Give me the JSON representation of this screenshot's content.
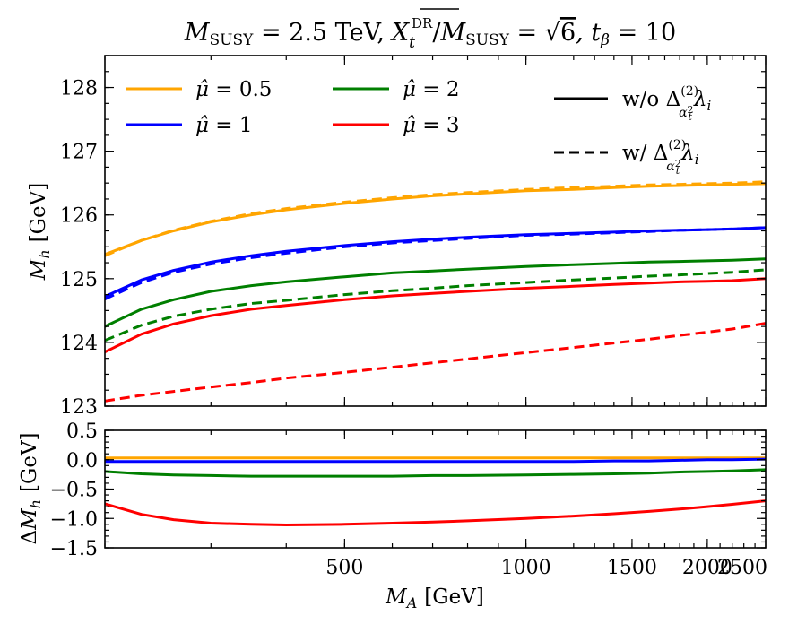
{
  "chart_data": {
    "type": "line",
    "title": {
      "m_susy_symbol": "M",
      "m_susy_sub": "SUSY",
      "m_susy_value": " = 2.5 TeV,",
      "xt_symbol": "X",
      "xt_sub": "t",
      "xt_sup": "DR",
      "over": "/",
      "m2_symbol": "M",
      "m2_sub": "SUSY",
      "eq": " = ",
      "sqrt_arg": "6",
      "tb_part": ", t",
      "tb_sub": "β",
      "tb_value": " = 10"
    },
    "xlabel": {
      "symbol": "M",
      "sub": "A",
      "unit": "[GeV]"
    },
    "x_scale": "log",
    "xlim": [
      200,
      2500
    ],
    "x_ticks": [
      500,
      1000,
      1500,
      2000,
      2500
    ],
    "x_tick_labels": [
      "500",
      "1000",
      "1500",
      "2000",
      "2500"
    ],
    "x": [
      200,
      230,
      260,
      300,
      350,
      400,
      500,
      600,
      700,
      800,
      1000,
      1200,
      1400,
      1600,
      1800,
      2000,
      2200,
      2500
    ],
    "top": {
      "ylabel": {
        "symbol": "M",
        "sub": "h",
        "unit": "[GeV]"
      },
      "ylim": [
        123,
        128.5
      ],
      "y_ticks": [
        123,
        124,
        125,
        126,
        127,
        128
      ],
      "y_tick_labels": [
        "123",
        "124",
        "125",
        "126",
        "127",
        "128"
      ],
      "series": [
        {
          "name": "μ̂ = 0.5",
          "color": "#FFA500",
          "style": "solid",
          "values": [
            125.38,
            125.6,
            125.75,
            125.89,
            126.0,
            126.08,
            126.18,
            126.25,
            126.3,
            126.33,
            126.38,
            126.4,
            126.43,
            126.45,
            126.46,
            126.47,
            126.48,
            126.49
          ]
        },
        {
          "name": "μ̂ = 0.5",
          "color": "#FFA500",
          "style": "dashed",
          "values": [
            125.36,
            125.6,
            125.76,
            125.9,
            126.02,
            126.1,
            126.2,
            126.27,
            126.32,
            126.35,
            126.4,
            126.43,
            126.45,
            126.47,
            126.48,
            126.49,
            126.5,
            126.52
          ]
        },
        {
          "name": "μ̂ = 1",
          "color": "#0000FF",
          "style": "solid",
          "values": [
            124.72,
            124.98,
            125.13,
            125.26,
            125.36,
            125.43,
            125.52,
            125.58,
            125.62,
            125.65,
            125.69,
            125.71,
            125.73,
            125.75,
            125.76,
            125.77,
            125.78,
            125.8
          ]
        },
        {
          "name": "μ̂ = 1",
          "color": "#0000FF",
          "style": "dashed",
          "values": [
            124.68,
            124.94,
            125.1,
            125.23,
            125.33,
            125.4,
            125.5,
            125.56,
            125.6,
            125.63,
            125.68,
            125.7,
            125.72,
            125.74,
            125.76,
            125.77,
            125.78,
            125.8
          ]
        },
        {
          "name": "μ̂ = 2",
          "color": "#007F00",
          "style": "solid",
          "values": [
            124.25,
            124.52,
            124.67,
            124.8,
            124.89,
            124.95,
            125.03,
            125.09,
            125.12,
            125.15,
            125.19,
            125.22,
            125.24,
            125.26,
            125.27,
            125.28,
            125.29,
            125.31
          ]
        },
        {
          "name": "μ̂ = 2",
          "color": "#007F00",
          "style": "dashed",
          "values": [
            124.03,
            124.27,
            124.41,
            124.52,
            124.61,
            124.66,
            124.75,
            124.81,
            124.85,
            124.89,
            124.94,
            124.98,
            125.01,
            125.04,
            125.06,
            125.08,
            125.1,
            125.14
          ]
        },
        {
          "name": "μ̂ = 3",
          "color": "#FF0000",
          "style": "solid",
          "values": [
            123.85,
            124.13,
            124.29,
            124.42,
            124.52,
            124.58,
            124.67,
            124.73,
            124.77,
            124.8,
            124.85,
            124.88,
            124.91,
            124.93,
            124.95,
            124.96,
            124.97,
            125.0
          ]
        },
        {
          "name": "μ̂ = 3",
          "color": "#FF0000",
          "style": "dashed",
          "values": [
            123.08,
            123.17,
            123.23,
            123.3,
            123.37,
            123.44,
            123.53,
            123.61,
            123.68,
            123.74,
            123.84,
            123.92,
            123.99,
            124.05,
            124.11,
            124.16,
            124.21,
            124.3
          ]
        }
      ]
    },
    "bottom": {
      "ylabel": {
        "prefix": "Δ",
        "symbol": "M",
        "sub": "h",
        "unit": "[GeV]"
      },
      "ylim": [
        -1.5,
        0.5
      ],
      "y_ticks": [
        -1.5,
        -1.0,
        -0.5,
        0.0,
        0.5
      ],
      "y_tick_labels": [
        "−1.5",
        "−1.0",
        "−0.5",
        "0.0",
        "0.5"
      ],
      "series": [
        {
          "name": "μ̂ = 0.5",
          "color": "#FFA500",
          "values": [
            0.03,
            0.03,
            0.03,
            0.03,
            0.03,
            0.03,
            0.03,
            0.03,
            0.03,
            0.03,
            0.03,
            0.03,
            0.03,
            0.03,
            0.03,
            0.03,
            0.03,
            0.03
          ]
        },
        {
          "name": "μ̂ = 1",
          "color": "#0000FF",
          "values": [
            -0.03,
            -0.03,
            -0.03,
            -0.03,
            -0.03,
            -0.03,
            -0.03,
            -0.03,
            -0.03,
            -0.03,
            -0.03,
            -0.03,
            -0.02,
            -0.02,
            -0.01,
            0.0,
            0.0,
            0.01
          ]
        },
        {
          "name": "μ̂ = 2",
          "color": "#007F00",
          "values": [
            -0.2,
            -0.24,
            -0.26,
            -0.27,
            -0.28,
            -0.28,
            -0.28,
            -0.28,
            -0.27,
            -0.27,
            -0.26,
            -0.25,
            -0.24,
            -0.23,
            -0.21,
            -0.2,
            -0.19,
            -0.17
          ]
        },
        {
          "name": "μ̂ = 3",
          "color": "#FF0000",
          "values": [
            -0.75,
            -0.93,
            -1.02,
            -1.08,
            -1.1,
            -1.11,
            -1.1,
            -1.08,
            -1.06,
            -1.04,
            -1.0,
            -0.96,
            -0.92,
            -0.88,
            -0.84,
            -0.8,
            -0.76,
            -0.7
          ]
        }
      ]
    },
    "legend": {
      "placement": "top",
      "color_entries": [
        {
          "hat": "μ̂",
          "value": " = 0.5",
          "color": "#FFA500"
        },
        {
          "hat": "μ̂",
          "value": " = 1",
          "color": "#0000FF"
        },
        {
          "hat": "μ̂",
          "value": " = 2",
          "color": "#007F00"
        },
        {
          "hat": "μ̂",
          "value": " = 3",
          "color": "#FF0000"
        }
      ],
      "style_entries": [
        {
          "style": "solid",
          "prefix": "w/o ",
          "delta": "Δ",
          "sup": "(2)",
          "sub": "α",
          "sub2": "t",
          "sub_sup": "2",
          "lambda": "λ",
          "lambda_sub": "i"
        },
        {
          "style": "dashed",
          "prefix": "w/ ",
          "delta": "Δ",
          "sup": "(2)",
          "sub": "α",
          "sub2": "t",
          "sub_sup": "2",
          "lambda": "λ",
          "lambda_sub": "i"
        }
      ]
    }
  }
}
